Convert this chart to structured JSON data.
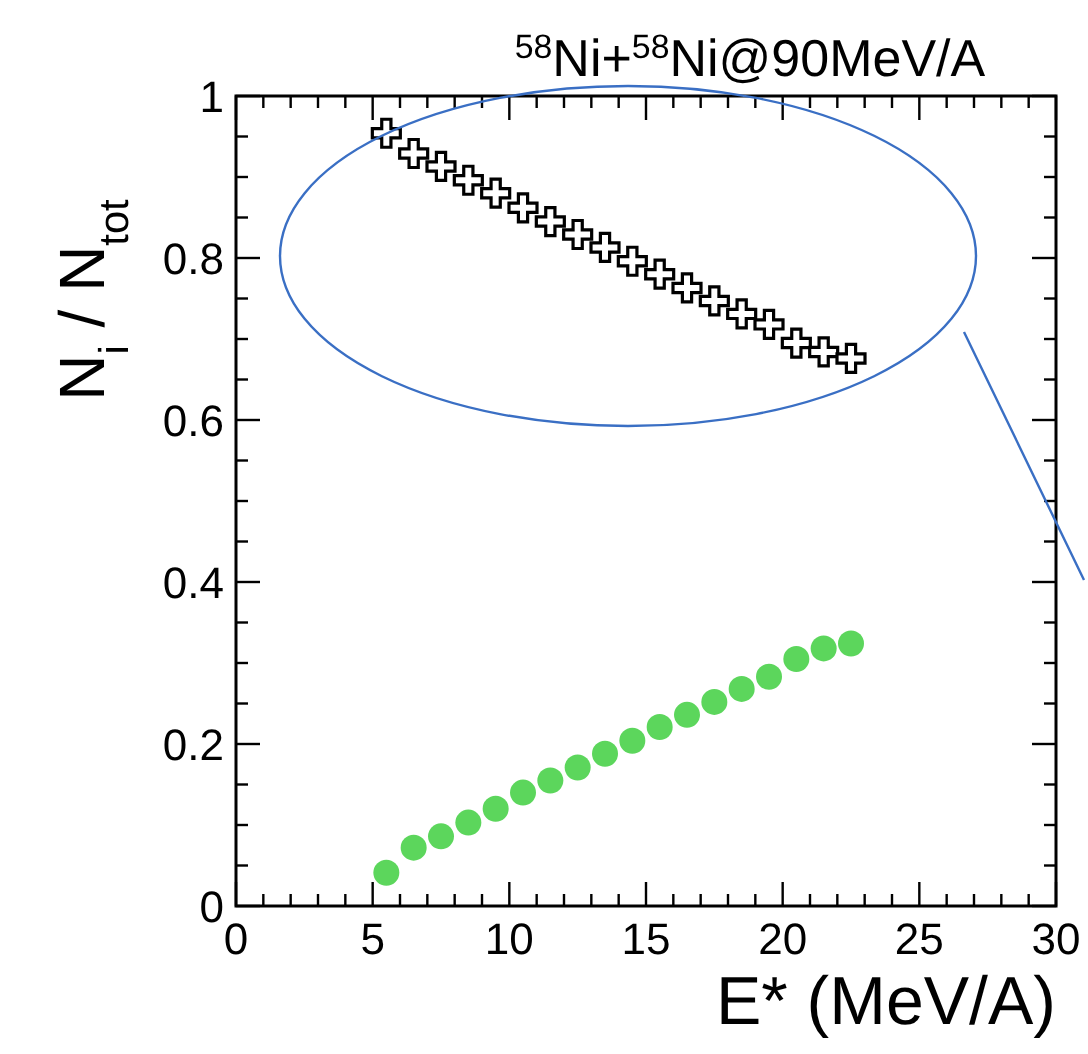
{
  "chart_data": {
    "type": "scatter",
    "title": "$^{58}$Ni+$^{58}$Ni@90MeV/A",
    "xlabel": "E* (MeV/A)",
    "ylabel": "N$_{i}$ / N$_{tot}$",
    "x": [
      5.5,
      6.5,
      7.5,
      8.5,
      9.5,
      10.5,
      11.5,
      12.5,
      13.5,
      14.5,
      15.5,
      16.5,
      17.5,
      18.5,
      19.5,
      20.5,
      21.5,
      22.5
    ],
    "series": [
      {
        "color": "#000000",
        "marker": "cross",
        "values": [
          0.954,
          0.929,
          0.913,
          0.896,
          0.88,
          0.862,
          0.845,
          0.829,
          0.813,
          0.796,
          0.78,
          0.763,
          0.747,
          0.731,
          0.718,
          0.695,
          0.684,
          0.676
        ]
      },
      {
        "color": "#5cd65c",
        "marker": "circle",
        "values": [
          0.041,
          0.072,
          0.086,
          0.103,
          0.12,
          0.14,
          0.155,
          0.171,
          0.188,
          0.204,
          0.221,
          0.236,
          0.252,
          0.268,
          0.283,
          0.305,
          0.318,
          0.324
        ]
      }
    ],
    "xlim": [
      0,
      30
    ],
    "ylim": [
      0,
      1
    ],
    "xticks": [
      0,
      {
        "value": 1,
        "label": null
      },
      {
        "value": 2,
        "label": null
      },
      {
        "value": 3,
        "label": null
      },
      {
        "value": 4,
        "label": null
      },
      5,
      {
        "value": 6,
        "label": null
      },
      {
        "value": 7,
        "label": null
      },
      {
        "value": 8,
        "label": null
      },
      {
        "value": 9,
        "label": null
      },
      10,
      {
        "value": 11,
        "label": null
      },
      {
        "value": 12,
        "label": null
      },
      {
        "value": 13,
        "label": null
      },
      {
        "value": 14,
        "label": null
      },
      15,
      {
        "value": 16,
        "label": null
      },
      {
        "value": 17,
        "label": null
      },
      {
        "value": 18,
        "label": null
      },
      {
        "value": 19,
        "label": null
      },
      20,
      {
        "value": 21,
        "label": null
      },
      {
        "value": 22,
        "label": null
      },
      {
        "value": 23,
        "label": null
      },
      {
        "value": 24,
        "label": null
      },
      25,
      {
        "value": 26,
        "label": null
      },
      {
        "value": 27,
        "label": null
      },
      {
        "value": 28,
        "label": null
      },
      {
        "value": 29,
        "label": null
      },
      30
    ],
    "yticks": [
      0,
      {
        "value": 0.05,
        "label": null
      },
      {
        "value": 0.1,
        "label": null
      },
      {
        "value": 0.15,
        "label": null
      },
      0.2,
      {
        "value": 0.25,
        "label": null
      },
      {
        "value": 0.3,
        "label": null
      },
      {
        "value": 0.35,
        "label": null
      },
      0.4,
      {
        "value": 0.45,
        "label": null
      },
      {
        "value": 0.5,
        "label": null
      },
      {
        "value": 0.55,
        "label": null
      },
      0.6,
      {
        "value": 0.65,
        "label": null
      },
      {
        "value": 0.7,
        "label": null
      },
      {
        "value": 0.75,
        "label": null
      },
      0.8,
      {
        "value": 0.85,
        "label": null
      },
      {
        "value": 0.9,
        "label": null
      },
      {
        "value": 0.95,
        "label": null
      },
      1
    ],
    "grid": false
  }
}
